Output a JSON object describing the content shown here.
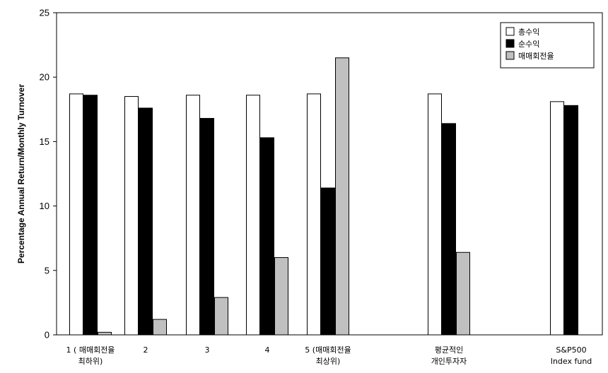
{
  "chart_data": {
    "type": "bar",
    "ylabel": "Percentage Annual Return/Monthly Turnover",
    "ylim": [
      0,
      25
    ],
    "yticks": [
      0,
      5,
      10,
      15,
      20,
      25
    ],
    "grid": false,
    "legend_position": "top-right",
    "categories": [
      [
        "1 ( 매매회전율",
        "최하위)"
      ],
      [
        "2"
      ],
      [
        "3"
      ],
      [
        "4"
      ],
      [
        "5 (매매회전율",
        "최상위)"
      ],
      [
        "평균적인",
        "개인투자자"
      ],
      [
        "S&P500",
        "Index fund"
      ]
    ],
    "series": [
      {
        "name": "총수익",
        "color": "#ffffff",
        "values": [
          18.7,
          18.5,
          18.6,
          18.6,
          18.7,
          18.7,
          18.1
        ]
      },
      {
        "name": "순수익",
        "color": "#000000",
        "values": [
          18.6,
          17.6,
          16.8,
          15.3,
          11.4,
          16.4,
          17.8
        ]
      },
      {
        "name": "매매회전율",
        "color": "#c0c0c0",
        "values": [
          0.2,
          1.2,
          2.9,
          6.0,
          21.5,
          6.4,
          null
        ]
      }
    ]
  }
}
